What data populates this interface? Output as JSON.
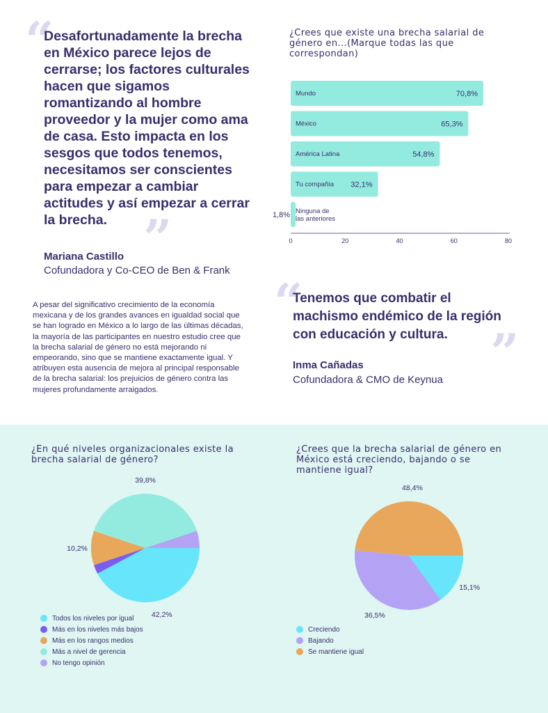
{
  "quote_left": {
    "text": "Desafortunadamente la brecha en México parece lejos de cerrarse; los factores culturales hacen que sigamos romantizando al hombre proveedor y la mujer como ama de casa. Esto impacta en los sesgos que todos tenemos, necesitamos ser conscientes para empezar a cambiar actitudes y así empezar a cerrar la brecha.",
    "author": "Mariana Castillo",
    "role": "Cofundadora y Co-CEO de Ben & Frank"
  },
  "body_text": "A pesar del significativo crecimiento de la economía mexicana y de los grandes avances en igualdad social que se han logrado en México a lo largo de las últimas décadas, la mayoría de las participantes en nuestro estudio cree que la brecha salarial de género no está mejorando ni empeorando, sino que se mantiene exactamente igual. Y atribuyen esta ausencia de mejora al principal responsable de la brecha salarial: los prejuicios de género contra las mujeres profundamente arraigados.",
  "quote_right": {
    "text": "Tenemos que combatir el machismo endémico de la región con educación y cultura.",
    "author": "Inma Cañadas",
    "role": "Cofundadora & CMO de Keynua"
  },
  "quote_glyphs": {
    "open": "“",
    "close": "”"
  },
  "chart_data": [
    {
      "type": "bar",
      "orientation": "horizontal",
      "title": "¿Crees que existe una brecha salarial de género en...(Marque todas las que correspondan)",
      "categories": [
        "Mundo",
        "México",
        "América Latina",
        "Tu compañía",
        "Ninguna de las anteriores"
      ],
      "values": [
        70.8,
        65.3,
        54.8,
        32.1,
        1.8
      ],
      "value_labels": [
        "70,8%",
        "65,3%",
        "54,8%",
        "32,1%",
        "1,8%"
      ],
      "xlim": [
        0,
        80
      ],
      "xticks": [
        "0",
        "20",
        "40",
        "60",
        "80"
      ],
      "color": "#93ebe0"
    },
    {
      "type": "pie",
      "title": "¿En qué niveles organizacionales existe la brecha salarial de género?",
      "labels": [
        "Todos los niveles por igual",
        "Más en los niveles más bajos",
        "Más en los rangos medios",
        "Más a nivel de gerencia",
        "No tengo opinión"
      ],
      "values": [
        42.2,
        2.7,
        10.2,
        39.8,
        5.1
      ],
      "value_labels": [
        "42,2%",
        "",
        "10,2%",
        "39,8%",
        ""
      ],
      "colors": [
        "#66e5fb",
        "#7b5cf0",
        "#e8a75a",
        "#93ebe0",
        "#b4a3f5"
      ]
    },
    {
      "type": "pie",
      "title": "¿Crees que la brecha salarial de género en México está creciendo, bajando o se mantiene igual?",
      "labels": [
        "Creciendo",
        "Bajando",
        "Se mantiene igual"
      ],
      "values": [
        15.1,
        36.5,
        48.4
      ],
      "value_labels": [
        "15,1%",
        "36,5%",
        "48,4%"
      ],
      "colors": [
        "#66e5fb",
        "#b4a3f5",
        "#e8a75a"
      ]
    }
  ]
}
